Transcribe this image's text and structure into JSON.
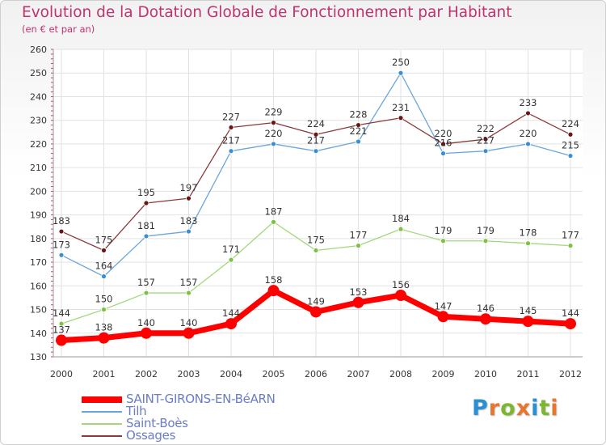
{
  "header": {
    "title": "Evolution de la Dotation Globale de Fonctionnement par Habitant",
    "subtitle": "(en € et par an)"
  },
  "logo": {
    "text": "Proxiti",
    "letters": [
      "P",
      "r",
      "o",
      "x",
      "i",
      "t",
      "i"
    ],
    "colors": [
      "#2b8fd6",
      "#e8762c",
      "#7db72f",
      "#e8762c",
      "#2b8fd6",
      "#7db72f",
      "#e8762c"
    ]
  },
  "chart_data": {
    "type": "line",
    "title": "Evolution de la Dotation Globale de Fonctionnement par Habitant",
    "subtitle": "(en € et par an)",
    "xlabel": "",
    "ylabel": "",
    "x": [
      "2000",
      "2001",
      "2002",
      "2003",
      "2004",
      "2005",
      "2006",
      "2007",
      "2008",
      "2009",
      "2010",
      "2011",
      "2012"
    ],
    "ylim": [
      130,
      260
    ],
    "yticks": [
      130,
      140,
      150,
      160,
      170,
      180,
      190,
      200,
      210,
      220,
      230,
      240,
      250,
      260
    ],
    "grid": true,
    "legend_position": "bottom-left",
    "series": [
      {
        "name": "SAINT-GIRONS-EN-BéARN",
        "color": "#ff0000",
        "width": 7,
        "marker": 7,
        "values": [
          137,
          138,
          140,
          140,
          144,
          158,
          149,
          153,
          156,
          147,
          146,
          145,
          144
        ]
      },
      {
        "name": "Tilh",
        "color": "#6aa6dc",
        "marker_color": "#3b8fd0",
        "width": 1.3,
        "marker": 3,
        "values": [
          173,
          164,
          181,
          183,
          217,
          220,
          217,
          221,
          250,
          216,
          217,
          220,
          215
        ]
      },
      {
        "name": "Saint-Boès",
        "color": "#a3d87a",
        "marker_color": "#7cc242",
        "width": 1.3,
        "marker": 3,
        "values": [
          144,
          150,
          157,
          157,
          171,
          187,
          175,
          177,
          184,
          179,
          179,
          178,
          177
        ]
      },
      {
        "name": "Ossages",
        "color": "#8a3a3a",
        "marker_color": "#6b1414",
        "width": 1.3,
        "marker": 3,
        "values": [
          183,
          175,
          195,
          197,
          227,
          229,
          224,
          228,
          231,
          220,
          222,
          233,
          224
        ]
      }
    ]
  }
}
